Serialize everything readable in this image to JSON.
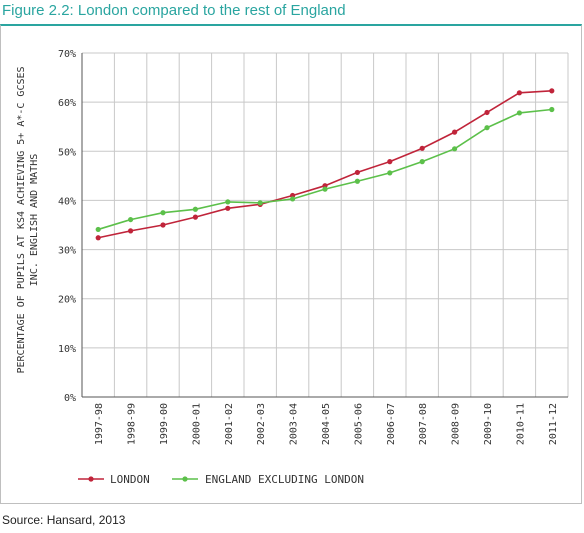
{
  "figure_title": "Figure 2.2: London compared to the rest of England",
  "source": "Source: Hansard, 2013",
  "colors": {
    "london": "#c0243a",
    "england": "#5cc04a",
    "title": "#2aa5a0",
    "grid": "#c8c8c8"
  },
  "chart_data": {
    "type": "line",
    "title": "",
    "xlabel": "",
    "ylabel": "PERCENTAGE OF PUPILS AT KS4 ACHIEVING 5+ A*-C GCSES",
    "ylabel2": "INC. ENGLISH AND MATHS",
    "ylim": [
      0,
      70
    ],
    "yticks": [
      "0%",
      "10%",
      "20%",
      "30%",
      "40%",
      "50%",
      "60%",
      "70%"
    ],
    "grid": true,
    "legend_position": "bottom",
    "categories": [
      "1997-98",
      "1998-99",
      "1999-00",
      "2000-01",
      "2001-02",
      "2002-03",
      "2003-04",
      "2004-05",
      "2005-06",
      "2006-07",
      "2007-08",
      "2008-09",
      "2009-10",
      "2010-11",
      "2011-12"
    ],
    "series": [
      {
        "name": "LONDON",
        "values": [
          32.4,
          33.8,
          35.0,
          36.6,
          38.4,
          39.2,
          41.0,
          43.0,
          45.7,
          47.9,
          50.6,
          53.9,
          57.9,
          61.9,
          62.3
        ]
      },
      {
        "name": "ENGLAND EXCLUDING LONDON",
        "values": [
          34.1,
          36.1,
          37.5,
          38.2,
          39.7,
          39.5,
          40.3,
          42.3,
          43.9,
          45.6,
          47.9,
          50.5,
          54.8,
          57.8,
          58.5
        ]
      }
    ]
  }
}
